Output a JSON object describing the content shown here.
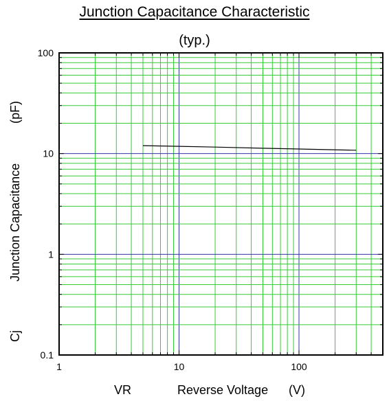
{
  "chart_data": {
    "type": "line",
    "title": "Junction Capacitance Characteristic",
    "subtitle": "(typ.)",
    "xscale": "log",
    "yscale": "log",
    "xlim": [
      1,
      500
    ],
    "ylim": [
      0.1,
      100
    ],
    "x_ticks": [
      "1",
      "10",
      "100"
    ],
    "y_ticks": [
      "0.1",
      "1",
      "10",
      "100"
    ],
    "xlabel": {
      "symbol": "VR",
      "name": "Reverse Voltage",
      "unit": "(V)"
    },
    "ylabel": {
      "symbol": "Cj",
      "name": "Junction Capacitance",
      "unit": "(pF)"
    },
    "grid": true,
    "series": [
      {
        "x": [
          5,
          10,
          20,
          50,
          100,
          300
        ],
        "y": [
          12.0,
          11.8,
          11.6,
          11.3,
          11.1,
          10.8
        ]
      }
    ]
  },
  "colors": {
    "minor_grid": "#33cc33",
    "major_grid": "#3333aa",
    "line": "#000000",
    "frame": "#000000"
  }
}
